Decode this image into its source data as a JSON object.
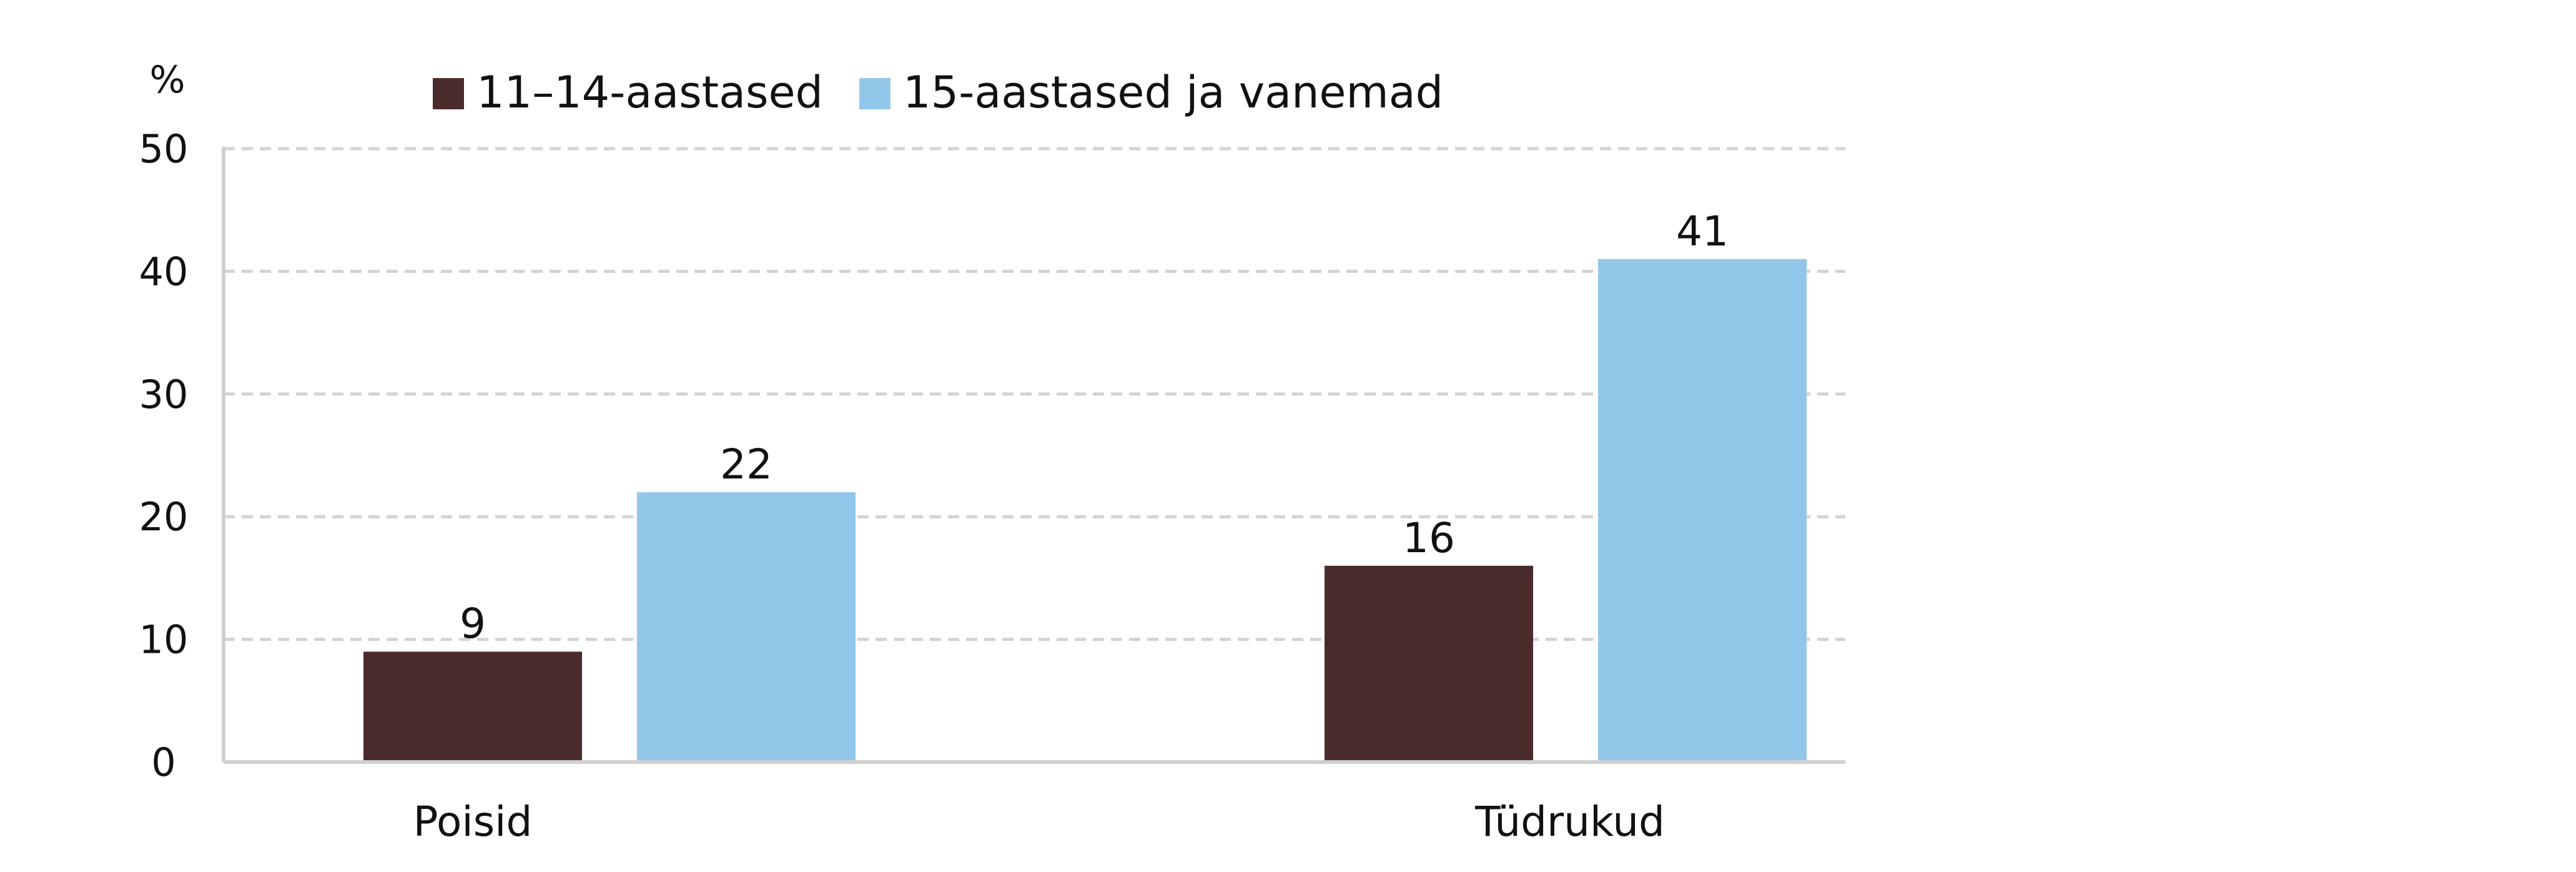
{
  "chart_data": {
    "type": "bar",
    "title": "",
    "xlabel": "",
    "ylabel": "%",
    "ylim": [
      0,
      50
    ],
    "yticks": [
      "0",
      "10",
      "20",
      "30",
      "40",
      "50"
    ],
    "grid": true,
    "legend_position": "top",
    "categories": [
      "Poisid",
      "Tüdrukud"
    ],
    "series": [
      {
        "name": "11–14-aastased",
        "color": "#4a2c2a",
        "values": [
          9,
          16
        ]
      },
      {
        "name": "15-aastased ja vanemad",
        "color": "#93c7ea",
        "values": [
          22,
          41
        ]
      }
    ]
  }
}
